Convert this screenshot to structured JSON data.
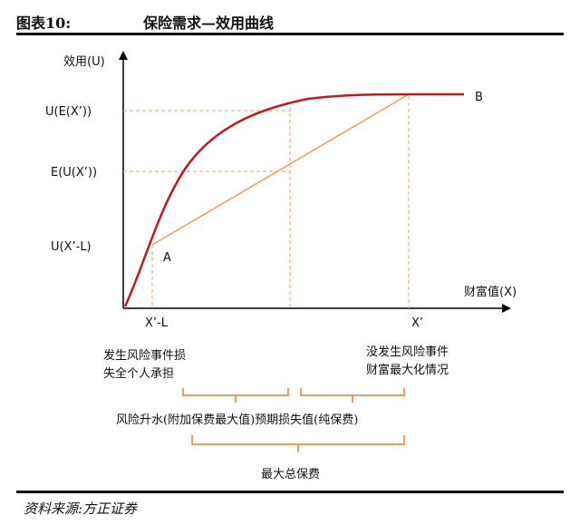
{
  "header": {
    "figure_label": "图表10:",
    "figure_title": "保险需求—效用曲线"
  },
  "axes": {
    "y_label": "效用(U)",
    "x_label": "财富值(X)"
  },
  "y_ticks": {
    "u_ex": "U(E(X’))",
    "e_ux": "E(U(X’))",
    "u_xl": "U(X’-L)"
  },
  "x_ticks": {
    "x_minus_l": "X’-L",
    "x_prime": "X’"
  },
  "points": {
    "a": "A",
    "b": "B"
  },
  "notes": {
    "loss_line1": "发生风险事件损",
    "loss_line2": "失全个人承担",
    "noloss_line1": "没发生风险事件",
    "noloss_line2": "财富最大化情况",
    "premium_split": "风险升水(附加保费最大值)预期损失值(纯保费)",
    "total": "最大总保费"
  },
  "footer": {
    "source": "资料来源:方正证券"
  },
  "colors": {
    "curve": "#c0191f",
    "line": "#f29b5c",
    "guide": "#f0a060",
    "brace": "#f07c28",
    "axis": "#000000"
  }
}
